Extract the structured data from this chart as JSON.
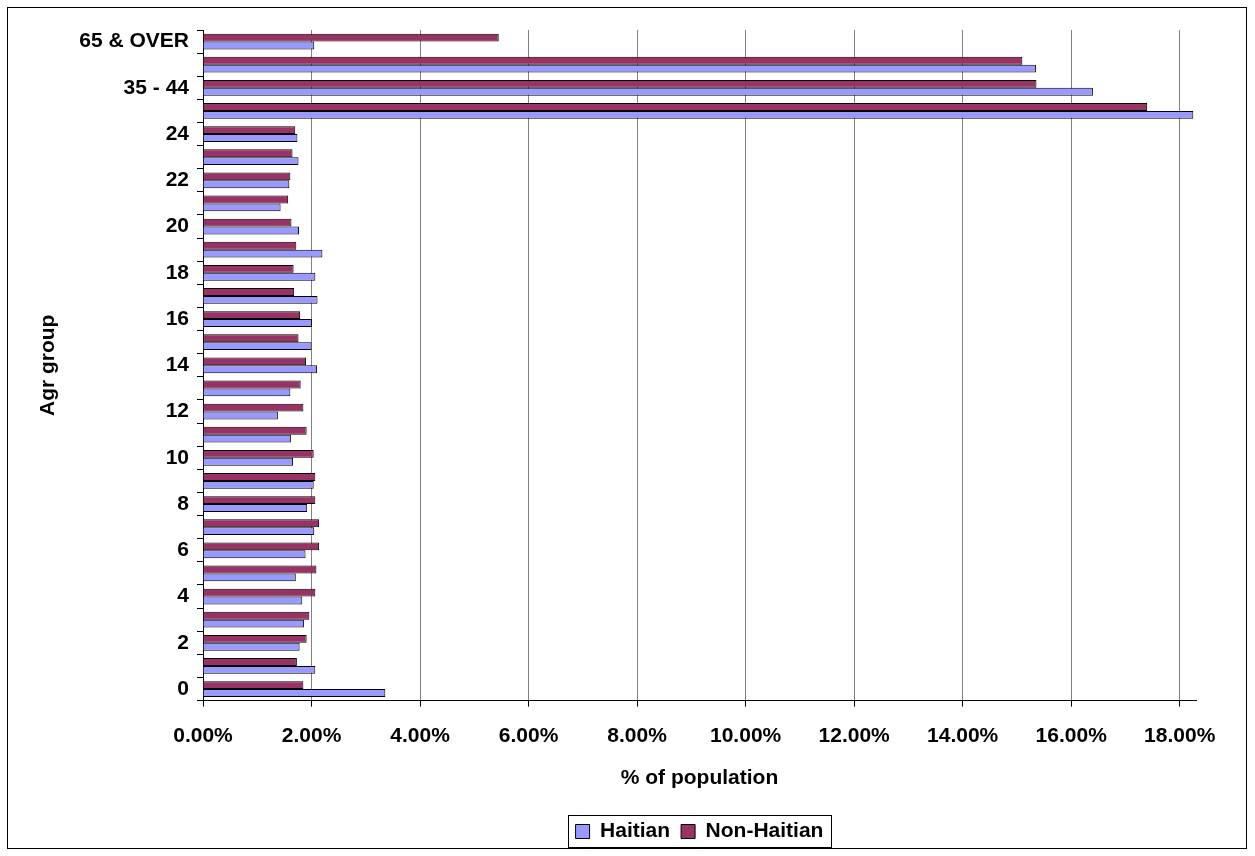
{
  "chart_data": {
    "type": "bar",
    "orientation": "horizontal",
    "xlabel": "% of population",
    "ylabel": "Agr group",
    "categories": [
      "65 & OVER",
      null,
      "35 - 44",
      null,
      "24",
      null,
      "22",
      null,
      "20",
      null,
      "18",
      null,
      "16",
      null,
      "14",
      null,
      "12",
      null,
      "10",
      null,
      "8",
      null,
      "6",
      null,
      "4",
      null,
      "2",
      null,
      "0"
    ],
    "series": [
      {
        "name": "Haitian",
        "color": "#9999ff",
        "values": [
          2.05,
          15.35,
          16.4,
          18.25,
          1.74,
          1.76,
          1.59,
          1.43,
          1.77,
          2.2,
          2.07,
          2.11,
          2.01,
          2.0,
          2.1,
          1.61,
          1.38,
          1.62,
          1.66,
          2.04,
          1.92,
          2.05,
          1.89,
          1.71,
          1.83,
          1.86,
          1.78,
          2.07,
          3.36
        ]
      },
      {
        "name": "Non-Haitian",
        "color": "#993366",
        "values": [
          5.45,
          15.1,
          15.36,
          17.4,
          1.7,
          1.65,
          1.61,
          1.57,
          1.63,
          1.72,
          1.67,
          1.68,
          1.79,
          1.76,
          1.9,
          1.8,
          1.85,
          1.91,
          2.04,
          2.07,
          2.07,
          2.14,
          2.14,
          2.09,
          2.07,
          1.96,
          1.91,
          1.73,
          1.85
        ]
      }
    ],
    "xlim": [
      0,
      18.3
    ],
    "xticks": [
      {
        "value": 0,
        "label": "0.00%"
      },
      {
        "value": 2,
        "label": "2.00%"
      },
      {
        "value": 4,
        "label": "4.00%"
      },
      {
        "value": 6,
        "label": "6.00%"
      },
      {
        "value": 8,
        "label": "8.00%"
      },
      {
        "value": 10,
        "label": "10.00%"
      },
      {
        "value": 12,
        "label": "12.00%"
      },
      {
        "value": 14,
        "label": "14.00%"
      },
      {
        "value": 16,
        "label": "16.00%"
      },
      {
        "value": 18,
        "label": "18.00%"
      }
    ],
    "grid": "x",
    "legend": "bottom"
  }
}
